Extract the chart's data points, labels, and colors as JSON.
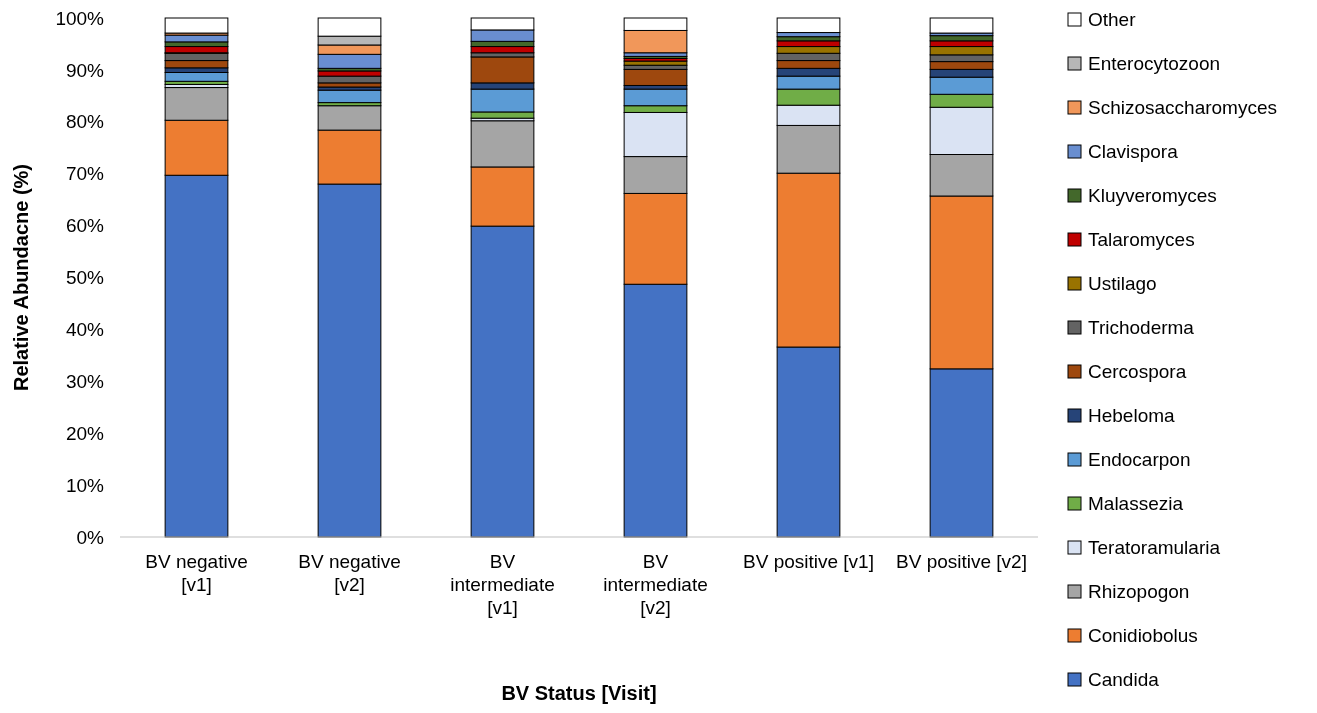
{
  "chart_data": {
    "type": "bar",
    "stacked": true,
    "xlabel": "BV Status [Visit]",
    "ylabel": "Relative Abundacne (%)",
    "legend": "right",
    "grid": false,
    "categories": [
      "BV negative\n[v1]",
      "BV negative\n[v2]",
      "BV\nintermediate\n[v1]",
      "BV\nintermediate\n[v2]",
      "BV positive [v1]",
      "BV positive [v2]"
    ],
    "ylim": [
      0,
      100
    ],
    "yticks": [
      {
        "value": 0,
        "label": "0%"
      },
      {
        "value": 10,
        "label": "10%"
      },
      {
        "value": 20,
        "label": "20%"
      },
      {
        "value": 30,
        "label": "30%"
      },
      {
        "value": 40,
        "label": "40%"
      },
      {
        "value": 50,
        "label": "50%"
      },
      {
        "value": 60,
        "label": "60%"
      },
      {
        "value": 70,
        "label": "70%"
      },
      {
        "value": 80,
        "label": "80%"
      },
      {
        "value": 90,
        "label": "90%"
      },
      {
        "value": 100,
        "label": "100%"
      }
    ],
    "series": [
      {
        "name": "Candida",
        "color": "#4472c4",
        "values": [
          69.7,
          68.0,
          59.9,
          48.7,
          36.6,
          32.4
        ]
      },
      {
        "name": "Conidiobolus",
        "color": "#ed7d31",
        "values": [
          10.6,
          10.4,
          11.4,
          17.5,
          33.5,
          33.3
        ]
      },
      {
        "name": "Rhizopogon",
        "color": "#a5a5a5",
        "values": [
          6.3,
          4.7,
          8.9,
          7.1,
          9.2,
          8.0
        ]
      },
      {
        "name": "Teratoramularia",
        "color": "#dae3f3",
        "values": [
          0.6,
          0,
          0.5,
          8.5,
          3.9,
          9.1
        ]
      },
      {
        "name": "Malassezia",
        "color": "#70ad47",
        "values": [
          0.6,
          0.6,
          1.2,
          1.3,
          3.1,
          2.5
        ]
      },
      {
        "name": "Endocarpon",
        "color": "#5b9bd5",
        "values": [
          1.7,
          2.4,
          4.4,
          3.2,
          2.5,
          3.3
        ]
      },
      {
        "name": "Hebeloma",
        "color": "#264478",
        "values": [
          0.9,
          0.6,
          1.2,
          0.7,
          1.5,
          1.5
        ]
      },
      {
        "name": "Cercospora",
        "color": "#9e480e",
        "values": [
          1.4,
          0.8,
          5.0,
          3.1,
          1.5,
          1.5
        ]
      },
      {
        "name": "Trichoderma",
        "color": "#636363",
        "values": [
          1.4,
          1.3,
          0.8,
          0.8,
          1.4,
          1.3
        ]
      },
      {
        "name": "Ustilago",
        "color": "#997300",
        "values": [
          0.1,
          0,
          0,
          0.8,
          1.3,
          1.6
        ]
      },
      {
        "name": "Talaromyces",
        "color": "#c00000",
        "values": [
          1.2,
          1.0,
          1.2,
          0.5,
          1.1,
          1.1
        ]
      },
      {
        "name": "Kluyveromyces",
        "color": "#43682b",
        "values": [
          0.9,
          0.5,
          1.0,
          0.4,
          0.8,
          1.0
        ]
      },
      {
        "name": "Clavispora",
        "color": "#698ed0",
        "values": [
          1.3,
          2.7,
          2.2,
          0.7,
          0.8,
          0.5
        ]
      },
      {
        "name": "Schizosaccharomyces",
        "color": "#f1975a",
        "values": [
          0.4,
          1.8,
          0,
          4.3,
          0,
          0
        ]
      },
      {
        "name": "Enterocytozoon",
        "color": "#b7b7b7",
        "values": [
          null,
          1.7,
          0,
          0,
          0,
          0
        ]
      },
      {
        "name": "Other",
        "color": "#ffffff",
        "values": [
          2.9,
          3.5,
          2.3,
          2.4,
          2.8,
          2.9
        ]
      }
    ]
  }
}
